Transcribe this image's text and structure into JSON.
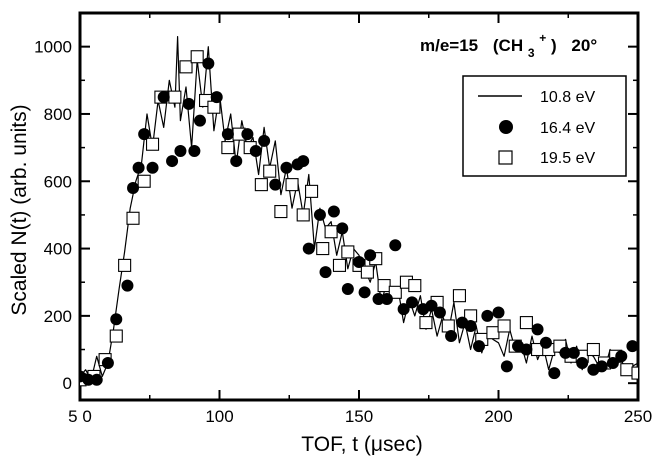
{
  "chart_data": {
    "type": "line",
    "xlabel": "TOF, t (μsec)",
    "ylabel": "Scaled N(t) (arb. units)",
    "annotation": {
      "species": "m/e=15",
      "ion_open": "(CH",
      "subscript": "3",
      "superscript": "+",
      "ion_close": ")",
      "angle": "20°"
    },
    "xlim": [
      50,
      250
    ],
    "ylim": [
      -50,
      1100
    ],
    "x_ticks": [
      {
        "value": 50,
        "label": "5 0"
      },
      {
        "value": 100,
        "label": "100"
      },
      {
        "value": 150,
        "label": "150"
      },
      {
        "value": 200,
        "label": "200"
      },
      {
        "value": 250,
        "label": "250"
      }
    ],
    "y_ticks": [
      {
        "value": 0,
        "label": "0"
      },
      {
        "value": 200,
        "label": "200"
      },
      {
        "value": 400,
        "label": "400"
      },
      {
        "value": 600,
        "label": "600"
      },
      {
        "value": 800,
        "label": "800"
      },
      {
        "value": 1000,
        "label": "1000"
      }
    ],
    "legend_position": "top-right",
    "series": [
      {
        "name": "10.8 eV",
        "style": "line",
        "x": [
          50,
          52,
          54,
          56,
          58,
          60,
          62,
          64,
          66,
          68,
          70,
          72,
          74,
          76,
          78,
          80,
          82,
          84,
          85,
          86,
          88,
          90,
          92,
          94,
          96,
          98,
          100,
          102,
          104,
          106,
          108,
          110,
          112,
          114,
          116,
          118,
          120,
          122,
          124,
          126,
          128,
          130,
          132,
          134,
          136,
          138,
          140,
          142,
          144,
          146,
          148,
          150,
          152,
          154,
          156,
          158,
          160,
          162,
          164,
          166,
          168,
          170,
          172,
          174,
          176,
          178,
          180,
          182,
          184,
          186,
          188,
          190,
          192,
          194,
          196,
          198,
          200,
          202,
          204,
          206,
          208,
          210,
          212,
          214,
          216,
          218,
          220,
          222,
          224,
          226,
          228,
          230,
          232,
          234,
          236,
          238,
          240,
          242,
          244,
          246,
          248,
          250
        ],
        "y": [
          20,
          40,
          10,
          80,
          20,
          60,
          160,
          280,
          390,
          520,
          600,
          650,
          800,
          700,
          840,
          760,
          900,
          820,
          1030,
          780,
          880,
          700,
          960,
          820,
          1000,
          750,
          860,
          720,
          800,
          650,
          780,
          700,
          730,
          620,
          760,
          640,
          720,
          560,
          640,
          520,
          600,
          500,
          620,
          400,
          520,
          460,
          480,
          380,
          450,
          340,
          400,
          380,
          340,
          300,
          360,
          240,
          300,
          260,
          280,
          180,
          250,
          200,
          260,
          160,
          220,
          140,
          200,
          150,
          240,
          120,
          180,
          100,
          170,
          90,
          150,
          130,
          120,
          80,
          160,
          100,
          120,
          60,
          140,
          70,
          110,
          40,
          100,
          90,
          130,
          60,
          110,
          40,
          90,
          80,
          50,
          40,
          100,
          60,
          70,
          30,
          50,
          60
        ]
      },
      {
        "name": "16.4 eV",
        "style": "filled-circle",
        "x": [
          50,
          53,
          56,
          60,
          63,
          67,
          69,
          71,
          73,
          76,
          80,
          83,
          86,
          89,
          91,
          93,
          96,
          99,
          103,
          106,
          110,
          113,
          116,
          120,
          124,
          128,
          130,
          132,
          136,
          138,
          141,
          144,
          146,
          150,
          152,
          154,
          157,
          160,
          163,
          166,
          169,
          173,
          176,
          179,
          183,
          187,
          190,
          193,
          196,
          200,
          203,
          207,
          210,
          214,
          217,
          220,
          224,
          227,
          230,
          234,
          237,
          241,
          244,
          248
        ],
        "y": [
          20,
          10,
          10,
          60,
          190,
          290,
          580,
          640,
          740,
          640,
          850,
          660,
          690,
          830,
          690,
          780,
          950,
          850,
          740,
          660,
          740,
          690,
          720,
          590,
          640,
          650,
          660,
          400,
          500,
          330,
          510,
          460,
          280,
          360,
          270,
          380,
          250,
          250,
          410,
          220,
          240,
          220,
          230,
          210,
          140,
          180,
          170,
          110,
          200,
          210,
          50,
          110,
          100,
          160,
          120,
          30,
          90,
          90,
          60,
          40,
          50,
          60,
          80,
          110
        ]
      },
      {
        "name": "19.5 eV",
        "style": "open-square",
        "x": [
          50,
          55,
          59,
          63,
          66,
          69,
          73,
          76,
          79,
          84,
          88,
          92,
          95,
          98,
          103,
          107,
          111,
          115,
          118,
          122,
          126,
          130,
          133,
          137,
          140,
          143,
          146,
          150,
          153,
          156,
          159,
          163,
          167,
          170,
          174,
          178,
          182,
          186,
          190,
          194,
          198,
          202,
          206,
          210,
          214,
          218,
          222,
          226,
          230,
          234,
          238,
          242,
          246,
          250
        ],
        "y": [
          10,
          20,
          70,
          140,
          350,
          490,
          600,
          710,
          850,
          850,
          940,
          970,
          840,
          820,
          700,
          740,
          700,
          590,
          630,
          510,
          590,
          500,
          570,
          400,
          450,
          350,
          390,
          350,
          330,
          370,
          290,
          270,
          300,
          290,
          180,
          240,
          170,
          260,
          200,
          130,
          150,
          170,
          110,
          180,
          100,
          100,
          110,
          80,
          80,
          100,
          60,
          80,
          40,
          30
        ]
      }
    ]
  }
}
